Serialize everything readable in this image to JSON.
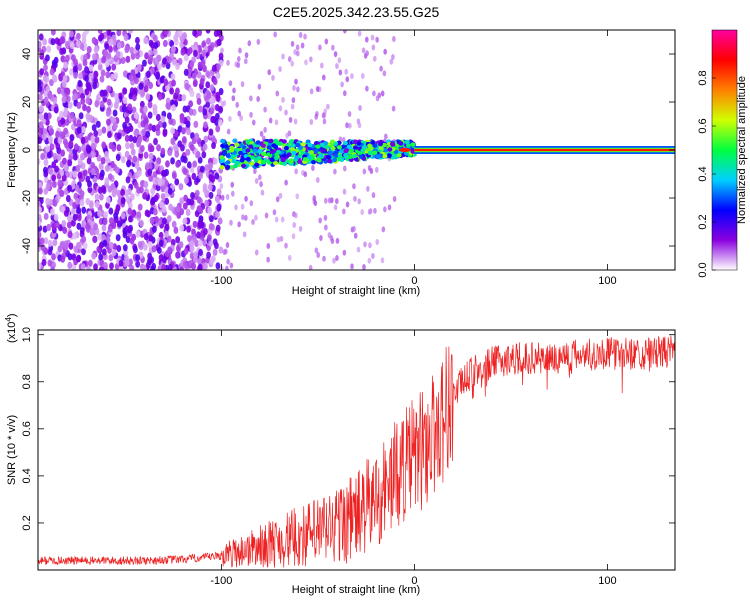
{
  "chart_data": [
    {
      "type": "heatmap",
      "title": "C2E5.2025.342.23.55.G25",
      "xlabel": "Height of straight line (km)",
      "ylabel": "Frequency (Hz)",
      "xlim": [
        -195,
        135
      ],
      "ylim": [
        -50,
        50
      ],
      "xticks": [
        -100,
        0,
        100
      ],
      "xtick_labels": [
        "-100",
        "0",
        "100"
      ],
      "yticks": [
        -40,
        -20,
        0,
        20,
        40
      ],
      "ytick_labels": [
        "-40",
        "-20",
        "0",
        "20",
        "40"
      ],
      "colorbar": {
        "label": "Normalized spectral amplitude",
        "range": [
          0,
          1
        ],
        "ticks": [
          0.0,
          0.2,
          0.4,
          0.6,
          0.8
        ],
        "tick_labels": [
          "0.0",
          "0.2",
          "0.4",
          "0.6",
          "0.8"
        ],
        "colors": [
          "#ffffff",
          "#8a00e0",
          "#0000ff",
          "#00d0ff",
          "#00ff40",
          "#d0ff00",
          "#ff8000",
          "#ff0000",
          "#ff00a0"
        ]
      },
      "regions": [
        {
          "name": "noise scatter",
          "x_range": [
            -195,
            -100
          ],
          "freq_range": [
            -50,
            50
          ],
          "amplitude": 0.1
        },
        {
          "name": "signal band",
          "x_range": [
            -100,
            0
          ],
          "freq_range": [
            -5,
            5
          ],
          "amplitude": 0.45
        },
        {
          "name": "carrier line",
          "x_range": [
            0,
            135
          ],
          "freq": 0,
          "amplitude": 0.85
        }
      ]
    },
    {
      "type": "line",
      "xlabel": "Height of straight line (km)",
      "ylabel": "SNR (10 * v/v)",
      "y_multiplier_label": "(x10",
      "y_multiplier_exp": "4",
      "y_multiplier_close": ")",
      "xlim": [
        -195,
        135
      ],
      "ylim": [
        0,
        1.02
      ],
      "xticks": [
        -100,
        0,
        100
      ],
      "xtick_labels": [
        "-100",
        "0",
        "100"
      ],
      "yticks": [
        0.2,
        0.4,
        0.6,
        0.8,
        1.0
      ],
      "ytick_labels": [
        "0.2",
        "0.4",
        "0.6",
        "0.8",
        "1.0"
      ],
      "series": [
        {
          "name": "SNR",
          "color": "#ee2222",
          "x": [
            -195,
            -180,
            -160,
            -140,
            -120,
            -100,
            -90,
            -80,
            -70,
            -60,
            -50,
            -40,
            -30,
            -20,
            -15,
            -10,
            -5,
            0,
            5,
            10,
            15,
            20,
            25,
            30,
            35,
            40,
            50,
            60,
            70,
            80,
            90,
            100,
            110,
            120,
            135
          ],
          "y": [
            0.04,
            0.04,
            0.04,
            0.04,
            0.045,
            0.06,
            0.08,
            0.1,
            0.12,
            0.14,
            0.16,
            0.19,
            0.23,
            0.3,
            0.35,
            0.4,
            0.45,
            0.48,
            0.52,
            0.58,
            0.66,
            0.74,
            0.8,
            0.84,
            0.86,
            0.88,
            0.9,
            0.9,
            0.9,
            0.91,
            0.92,
            0.92,
            0.92,
            0.92,
            0.93
          ]
        }
      ]
    }
  ]
}
